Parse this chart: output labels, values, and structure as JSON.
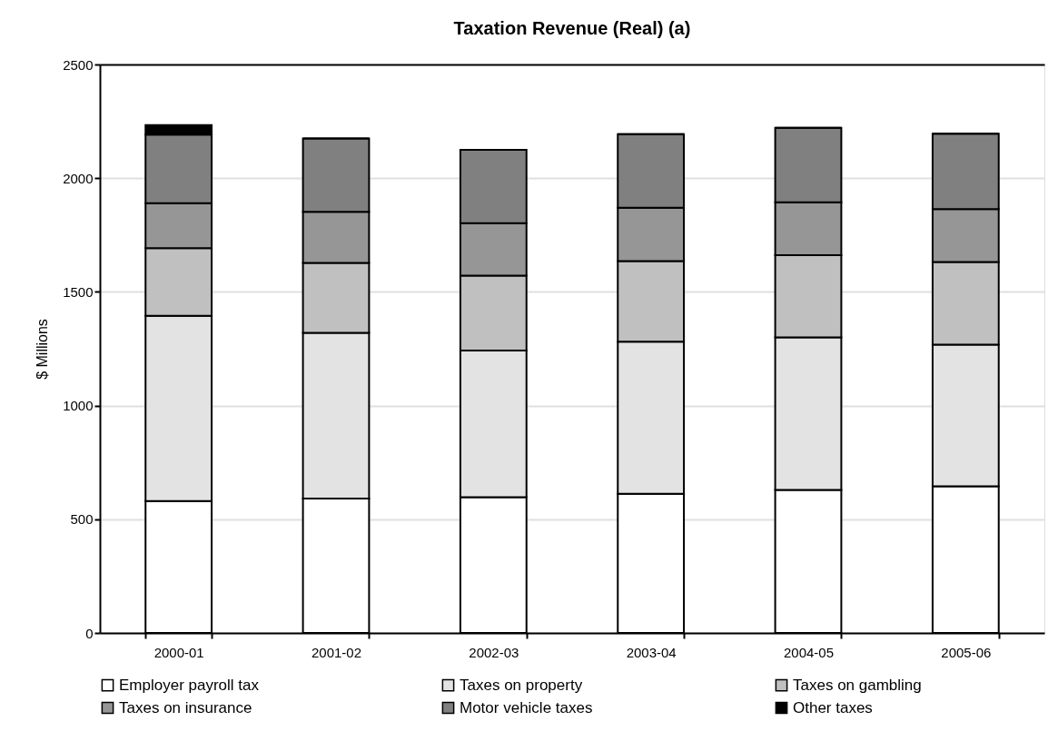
{
  "chart_data": {
    "type": "bar",
    "title": "Taxation Revenue (Real) (a)",
    "ylabel": "$ Millions",
    "categories": [
      "2000-01",
      "2001-02",
      "2002-03",
      "2003-04",
      "2004-05",
      "2005-06"
    ],
    "stacked": true,
    "ylim": [
      0,
      2500
    ],
    "yticks": [
      0,
      500,
      1000,
      1500,
      2000,
      2500
    ],
    "grid": "y",
    "legend": "bottom",
    "series": [
      {
        "name": "Employer payroll tax",
        "color": "#ffffff",
        "values": [
          580,
          591,
          597,
          612,
          629,
          645
        ]
      },
      {
        "name": "Taxes on property",
        "color": "#e3e3e3",
        "values": [
          815,
          729,
          645,
          669,
          671,
          623
        ]
      },
      {
        "name": "Taxes on gambling",
        "color": "#c0c0c0",
        "values": [
          297,
          307,
          329,
          354,
          361,
          363
        ]
      },
      {
        "name": "Taxes on insurance",
        "color": "#969696",
        "values": [
          198,
          225,
          231,
          235,
          233,
          233
        ]
      },
      {
        "name": "Motor vehicle taxes",
        "color": "#808080",
        "values": [
          301,
          323,
          323,
          323,
          327,
          331
        ]
      },
      {
        "name": "Other taxes",
        "color": "#000000",
        "values": [
          42,
          0,
          0,
          0,
          0,
          0
        ]
      }
    ]
  }
}
